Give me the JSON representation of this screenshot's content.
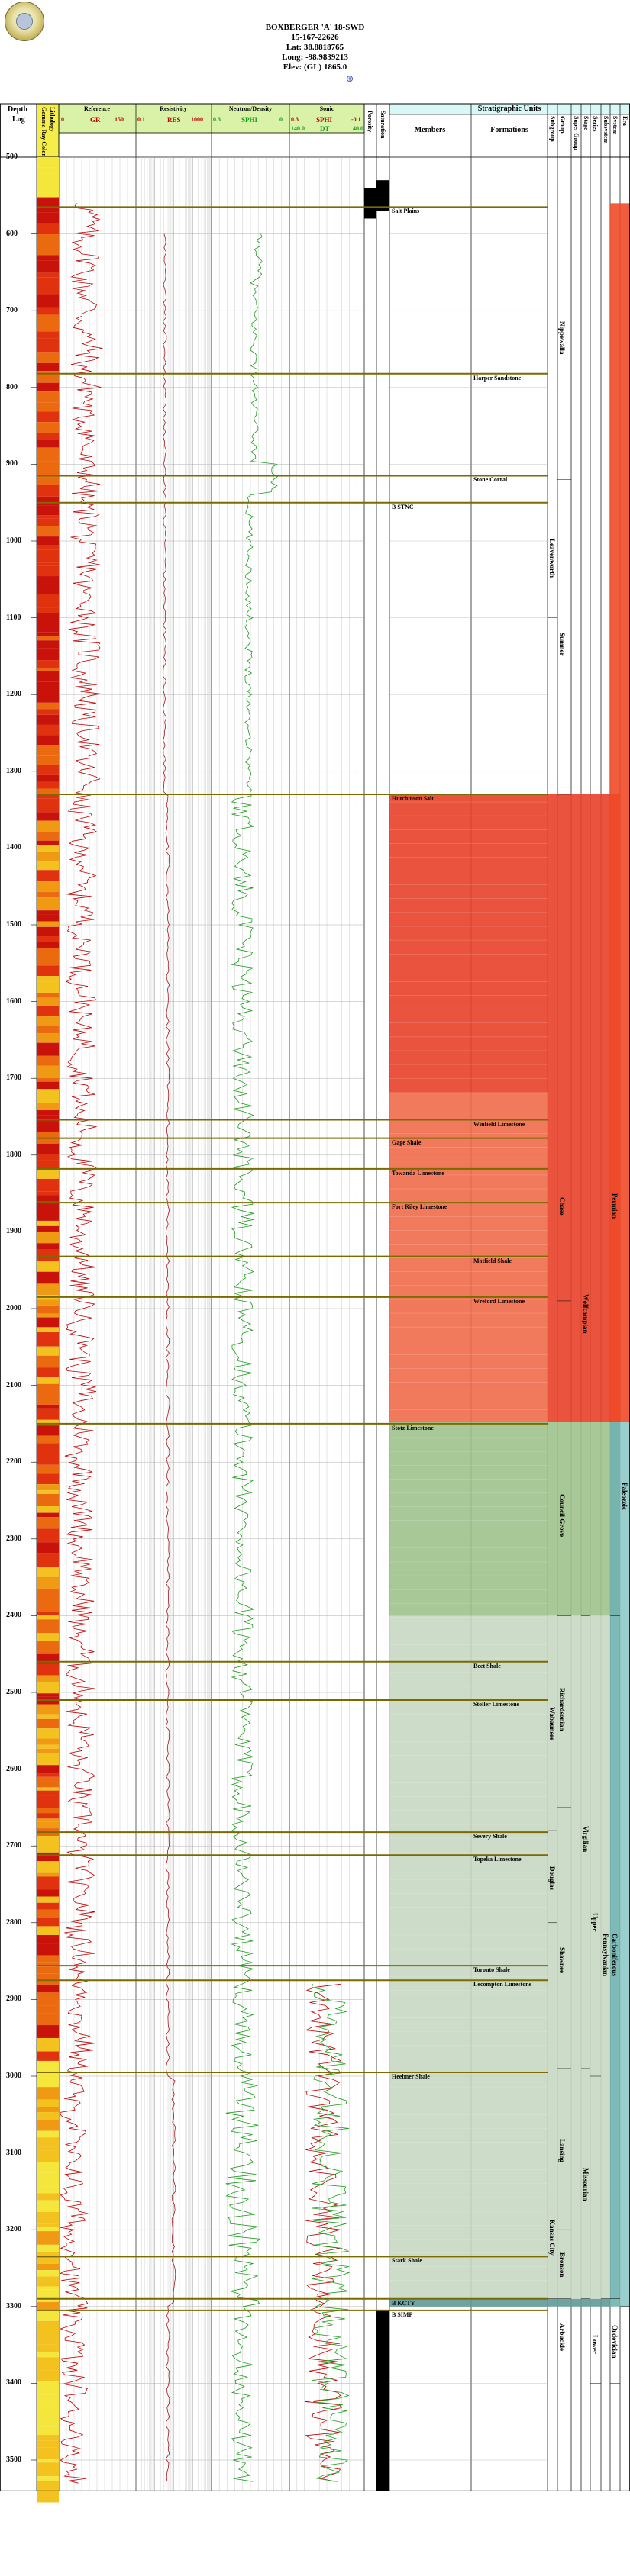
{
  "well": {
    "name": "BOXBERGER 'A' 18-SWD",
    "api": "15-167-22626",
    "lat": "Lat: 38.8818765",
    "long": "Long: -98.9839213",
    "elev": "Elev: (GL) 1865.0"
  },
  "columns": {
    "depth_header": [
      "Depth",
      "Log"
    ],
    "lithology": "Lithology",
    "gamma_ray_color": "Gamma Ray Color",
    "reference": {
      "title": "Reference",
      "curve": "GR",
      "left": "0",
      "right": "150"
    },
    "resistivity": {
      "title": "Resistivity",
      "curve": "RES",
      "left": "0.1",
      "right": "1000"
    },
    "neutron_density": {
      "title": "Neutron/Density",
      "curve": "SPHI",
      "left": "0.3",
      "right": "0"
    },
    "sonic": {
      "title": "Sonic",
      "curve1": "SPHI",
      "curve1_left": "0.3",
      "curve1_right": "-0.1",
      "curve2": "DT",
      "curve2_left": "140.0",
      "curve2_right": "40.0"
    },
    "porosity": "Porosity",
    "saturation": "Saturation",
    "strat_title": "Stratigraphic Units",
    "members": "Members",
    "formations": "Formations",
    "subgroup": "Subgroup",
    "group": "Group",
    "super_group": "Super Group",
    "stage": "Stage",
    "series": "Series",
    "subsystem": "Subsystem",
    "system": "System",
    "era": "Era"
  },
  "depth_ticks": [
    500,
    600,
    700,
    800,
    900,
    1000,
    1100,
    1200,
    1300,
    1400,
    1500,
    1600,
    1700,
    1800,
    1900,
    2000,
    2100,
    2200,
    2300,
    2400,
    2500,
    2600,
    2700,
    2800,
    2900,
    3000,
    3100,
    3200,
    3300,
    3400,
    3500
  ],
  "tops": [
    {
      "name": "Salt Plains",
      "depth": 565,
      "col": "members"
    },
    {
      "name": "Harper Sandstone",
      "depth": 782,
      "col": "formations"
    },
    {
      "name": "Stone Corral",
      "depth": 915,
      "col": "formations"
    },
    {
      "name": "B STNC",
      "depth": 950,
      "col": "members"
    },
    {
      "name": "Hutchinson Salt",
      "depth": 1330,
      "col": "members"
    },
    {
      "name": "Winfield Limestone",
      "depth": 1754,
      "col": "formations"
    },
    {
      "name": "Gage Shale",
      "depth": 1778,
      "col": "members"
    },
    {
      "name": "Towanda Limestone",
      "depth": 1818,
      "col": "members"
    },
    {
      "name": "Fort Riley Limestone",
      "depth": 1862,
      "col": "members"
    },
    {
      "name": "Matfield Shale",
      "depth": 1932,
      "col": "formations"
    },
    {
      "name": "Wreford Limestone",
      "depth": 1985,
      "col": "formations"
    },
    {
      "name": "Stotz Limestone",
      "depth": 2150,
      "col": "members"
    },
    {
      "name": "Beet Shale",
      "depth": 2460,
      "col": "formations"
    },
    {
      "name": "Stoller Limestone",
      "depth": 2510,
      "col": "formations"
    },
    {
      "name": "Severy Shale",
      "depth": 2682,
      "col": "formations"
    },
    {
      "name": "Topeka Limestone",
      "depth": 2712,
      "col": "formations"
    },
    {
      "name": "Toronto Shale",
      "depth": 2856,
      "col": "formations"
    },
    {
      "name": "Lecompton Limestone",
      "depth": 2875,
      "col": "formations"
    },
    {
      "name": "Heebner Shale",
      "depth": 2995,
      "col": "members"
    },
    {
      "name": "Stark Shale",
      "depth": 3235,
      "col": "members"
    },
    {
      "name": "B KCTY",
      "depth": 3290,
      "col": "members"
    },
    {
      "name": "B SIMP",
      "depth": 3305,
      "col": "members"
    }
  ],
  "groups": [
    {
      "name": "Nippewalla",
      "col": "group",
      "from": 560,
      "to": 920
    },
    {
      "name": "Leavenworth",
      "col": "subgroup",
      "from": 950,
      "to": 1100
    },
    {
      "name": "Sumner",
      "col": "group",
      "from": 940,
      "to": 1330
    },
    {
      "name": "Chase",
      "col": "group",
      "from": 1745,
      "to": 1990
    },
    {
      "name": "Council Grove",
      "col": "group",
      "from": 2150,
      "to": 2400
    },
    {
      "name": "Wolfcampian",
      "col": "stage",
      "from": 1620,
      "to": 2400
    },
    {
      "name": "Richardsonian",
      "col": "group",
      "from": 2405,
      "to": 2650
    },
    {
      "name": "Wabaunsee",
      "col": "subgroup",
      "from": 2405,
      "to": 2680
    },
    {
      "name": "Shawnee",
      "col": "group",
      "from": 2710,
      "to": 2990
    },
    {
      "name": "Douglas",
      "col": "subgroup",
      "from": 2690,
      "to": 2800
    },
    {
      "name": "Virgilian",
      "col": "stage",
      "from": 2405,
      "to": 2990
    },
    {
      "name": "Lansing",
      "col": "group",
      "from": 3000,
      "to": 3200
    },
    {
      "name": "Kansas City",
      "col": "subgroup",
      "from": 3140,
      "to": 3290
    },
    {
      "name": "Missourian",
      "col": "stage",
      "from": 3000,
      "to": 3290
    },
    {
      "name": "Bronson",
      "col": "group",
      "from": 3205,
      "to": 3290
    },
    {
      "name": "Upper",
      "col": "series",
      "from": 2600,
      "to": 3000
    },
    {
      "name": "Pennsylvanian",
      "col": "subsystem",
      "from": 2405,
      "to": 3290
    },
    {
      "name": "Carboniferous",
      "col": "system",
      "from": 2405,
      "to": 3290
    },
    {
      "name": "Permian",
      "col": "system",
      "from": 1335,
      "to": 2400
    },
    {
      "name": "Paleozoic",
      "col": "era",
      "from": 1200,
      "to": 3300
    },
    {
      "name": "Arbuckle",
      "col": "group",
      "from": 3305,
      "to": 3380
    },
    {
      "name": "Ordovician",
      "col": "system",
      "from": 3300,
      "to": 3400
    },
    {
      "name": "Lower",
      "col": "series",
      "from": 3300,
      "to": 3400
    }
  ],
  "colors": {
    "permian_upper": "#e8412a",
    "permian_mid": "#f06a4a",
    "council_grove": "#9ec28c",
    "penn": "#c7d8c2",
    "system_permian": "#f04a28",
    "system_carb": "#6fb3b0",
    "era_paleozoic": "#8fc9c6",
    "reference_header": "#d9f2a8",
    "strat_header": "#d8f7f7",
    "gr_curve": "#c00000",
    "sphi_curve": "#1a9e1a",
    "top_line": "#7a6a00"
  }
}
